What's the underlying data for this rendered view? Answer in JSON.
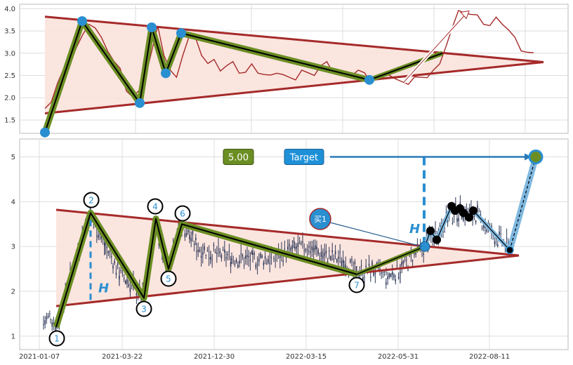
{
  "chart_data": [
    {
      "type": "line",
      "title": "",
      "xlabel": "",
      "ylabel": "",
      "ylim": [
        1.2,
        4.1
      ],
      "yticks": [
        "1.5",
        "2.0",
        "2.5",
        "3.0",
        "3.5",
        "4.0"
      ],
      "grid": true,
      "price_line": [
        1.7,
        1.95,
        2.3,
        2.6,
        2.8,
        3.1,
        3.35,
        3.7,
        3.55,
        3.3,
        3.1,
        2.8,
        2.6,
        2.2,
        2.0,
        2.1,
        2.5,
        3.0,
        3.55,
        3.0,
        2.6,
        2.4,
        3.0,
        3.35,
        3.3,
        3.0,
        2.75,
        2.8,
        2.65,
        2.7,
        2.75,
        2.6,
        2.55,
        2.7,
        2.6,
        2.5,
        2.45,
        2.6,
        2.5,
        2.4,
        2.45,
        2.6,
        2.5,
        2.55,
        2.7,
        2.75,
        2.6,
        2.5,
        2.45,
        2.55,
        2.6,
        2.5,
        2.4,
        2.45,
        2.5,
        2.55,
        2.4,
        2.3,
        2.35,
        2.45,
        2.4,
        2.5,
        2.6,
        2.7,
        3.2,
        3.55,
        3.9,
        3.95,
        3.85,
        3.8,
        3.7,
        3.6,
        3.75,
        3.7,
        3.5,
        3.3,
        3.1,
        3.0,
        2.95
      ],
      "zigzag_points": [
        {
          "pivot": 1,
          "y": 1.22
        },
        {
          "pivot": 2,
          "y": 3.72
        },
        {
          "pivot": 3,
          "y": 1.88
        },
        {
          "pivot": 4,
          "y": 3.58
        },
        {
          "pivot": 5,
          "y": 2.55
        },
        {
          "pivot": 6,
          "y": 3.45
        },
        {
          "pivot": 7,
          "y": 2.4
        }
      ],
      "breakout_end_y": 3.0,
      "target_arrow_end_y": 3.95,
      "upper_trendline": [
        3.82,
        2.8
      ],
      "lower_trendline": [
        1.65,
        2.8
      ]
    },
    {
      "type": "candlestick",
      "title": "",
      "ylim": [
        0.7,
        5.4
      ],
      "yticks": [
        "1",
        "2",
        "3",
        "4",
        "5"
      ],
      "xticks": [
        "2021-01-07",
        "2021-03-22",
        "2021-12-30",
        "2022-03-15",
        "2022-05-31",
        "2022-08-11"
      ],
      "grid": true,
      "pivot_labels": [
        "1",
        "2",
        "3",
        "4",
        "5",
        "6",
        "7"
      ],
      "zigzag_points": [
        {
          "pivot": 1,
          "y": 1.2
        },
        {
          "pivot": 2,
          "y": 3.75
        },
        {
          "pivot": 3,
          "y": 1.85
        },
        {
          "pivot": 4,
          "y": 3.62
        },
        {
          "pivot": 5,
          "y": 2.5
        },
        {
          "pivot": 6,
          "y": 3.5
        },
        {
          "pivot": 7,
          "y": 2.38
        }
      ],
      "upper_trendline": [
        3.82,
        2.8
      ],
      "lower_trendline": [
        1.67,
        2.8
      ],
      "breakout_point_y": 3.0,
      "target_value": 5.0,
      "target_box_label": "Target",
      "target_value_label": "5.00",
      "buy_label": "买1",
      "height_label": "H",
      "post_breakout_markers": [
        3.35,
        3.15,
        3.9,
        3.8,
        3.85,
        3.75,
        3.65,
        3.8
      ],
      "last_marker_y": 2.92
    }
  ],
  "colors": {
    "triangle_fill": "#fbe2dc",
    "trendline": "#a52a2a",
    "zigzag_outer": "#6b8e23",
    "zigzag_inner": "#000000",
    "pivot_marker": "#2a8fd0",
    "price_line": "#a52a2a",
    "candle": "#2f3a5a",
    "target_box": "#1e90d8",
    "value_box": "#6b8e23",
    "arrow": "#2a7ab8",
    "grid": "#cccccc"
  }
}
